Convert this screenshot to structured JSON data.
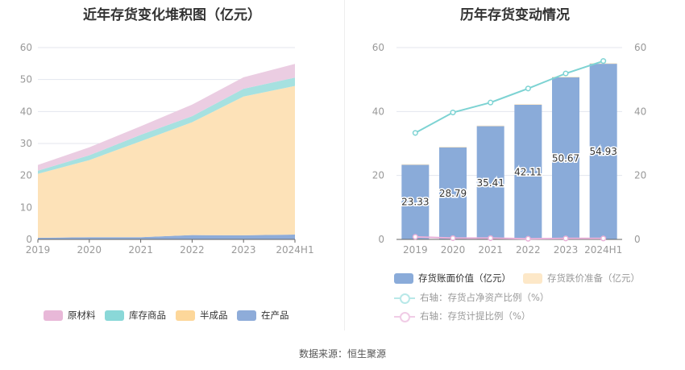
{
  "source": "数据来源：恒生聚源",
  "chart_data": [
    {
      "type": "area",
      "stacked": true,
      "title": "近年存货变化堆积图（亿元）",
      "categories": [
        "2019",
        "2020",
        "2021",
        "2022",
        "2023",
        "2024H1"
      ],
      "ylim": [
        0,
        60
      ],
      "yticks": [
        0,
        10,
        20,
        30,
        40,
        50,
        60
      ],
      "grid": true,
      "legend": "bottom",
      "series": [
        {
          "name": "在产品",
          "color": "#8eacd9",
          "values": [
            0.5,
            0.7,
            0.7,
            1.35,
            1.3,
            1.5
          ]
        },
        {
          "name": "半成品",
          "color": "#fde2b8",
          "legend_color": "#fdd79a",
          "values": [
            20.0,
            24.1,
            30.0,
            35.3,
            43.4,
            46.5
          ]
        },
        {
          "name": "库存商品",
          "color": "#a6e1e0",
          "legend_color": "#8ad8d8",
          "values": [
            1.0,
            1.5,
            2.0,
            1.9,
            2.4,
            2.6
          ]
        },
        {
          "name": "原材料",
          "color": "#ebcde2",
          "legend_color": "#e8b8d8",
          "values": [
            1.8,
            2.5,
            2.7,
            3.6,
            3.6,
            4.3
          ]
        }
      ]
    },
    {
      "type": "bar+line",
      "title": "历年存货变动情况",
      "categories": [
        "2019",
        "2020",
        "2021",
        "2022",
        "2023",
        "2024H1"
      ],
      "ylim": [
        0,
        60
      ],
      "yticks": [
        0,
        20,
        40,
        60
      ],
      "y2lim": [
        0,
        60
      ],
      "y2ticks": [
        0,
        20,
        40,
        60
      ],
      "grid": true,
      "legend": "bottom",
      "bars": [
        {
          "name": "存货账面价值（亿元）",
          "color": "#8aabd9",
          "values": [
            23.33,
            28.79,
            35.41,
            42.11,
            50.67,
            54.93
          ],
          "labels": [
            "23.33",
            "28.79",
            "35.41",
            "42.11",
            "50.67",
            "54.93"
          ]
        },
        {
          "name": "存货跌价准备（亿元）",
          "color": "#fde8c8",
          "values": [
            0.2,
            0.2,
            0.2,
            0.2,
            0.2,
            0.2
          ]
        }
      ],
      "lines": [
        {
          "name": "右轴：存货占净资产比例（%）",
          "color": "#7dd3d3",
          "axis": "right",
          "values": [
            33.3,
            39.7,
            42.8,
            47.2,
            51.9,
            55.8
          ]
        },
        {
          "name": "右轴：存货计提比例（%）",
          "color": "#e8b0d8",
          "axis": "right",
          "values": [
            0.8,
            0.4,
            0.4,
            0.2,
            0.3,
            0.3
          ]
        }
      ]
    }
  ]
}
